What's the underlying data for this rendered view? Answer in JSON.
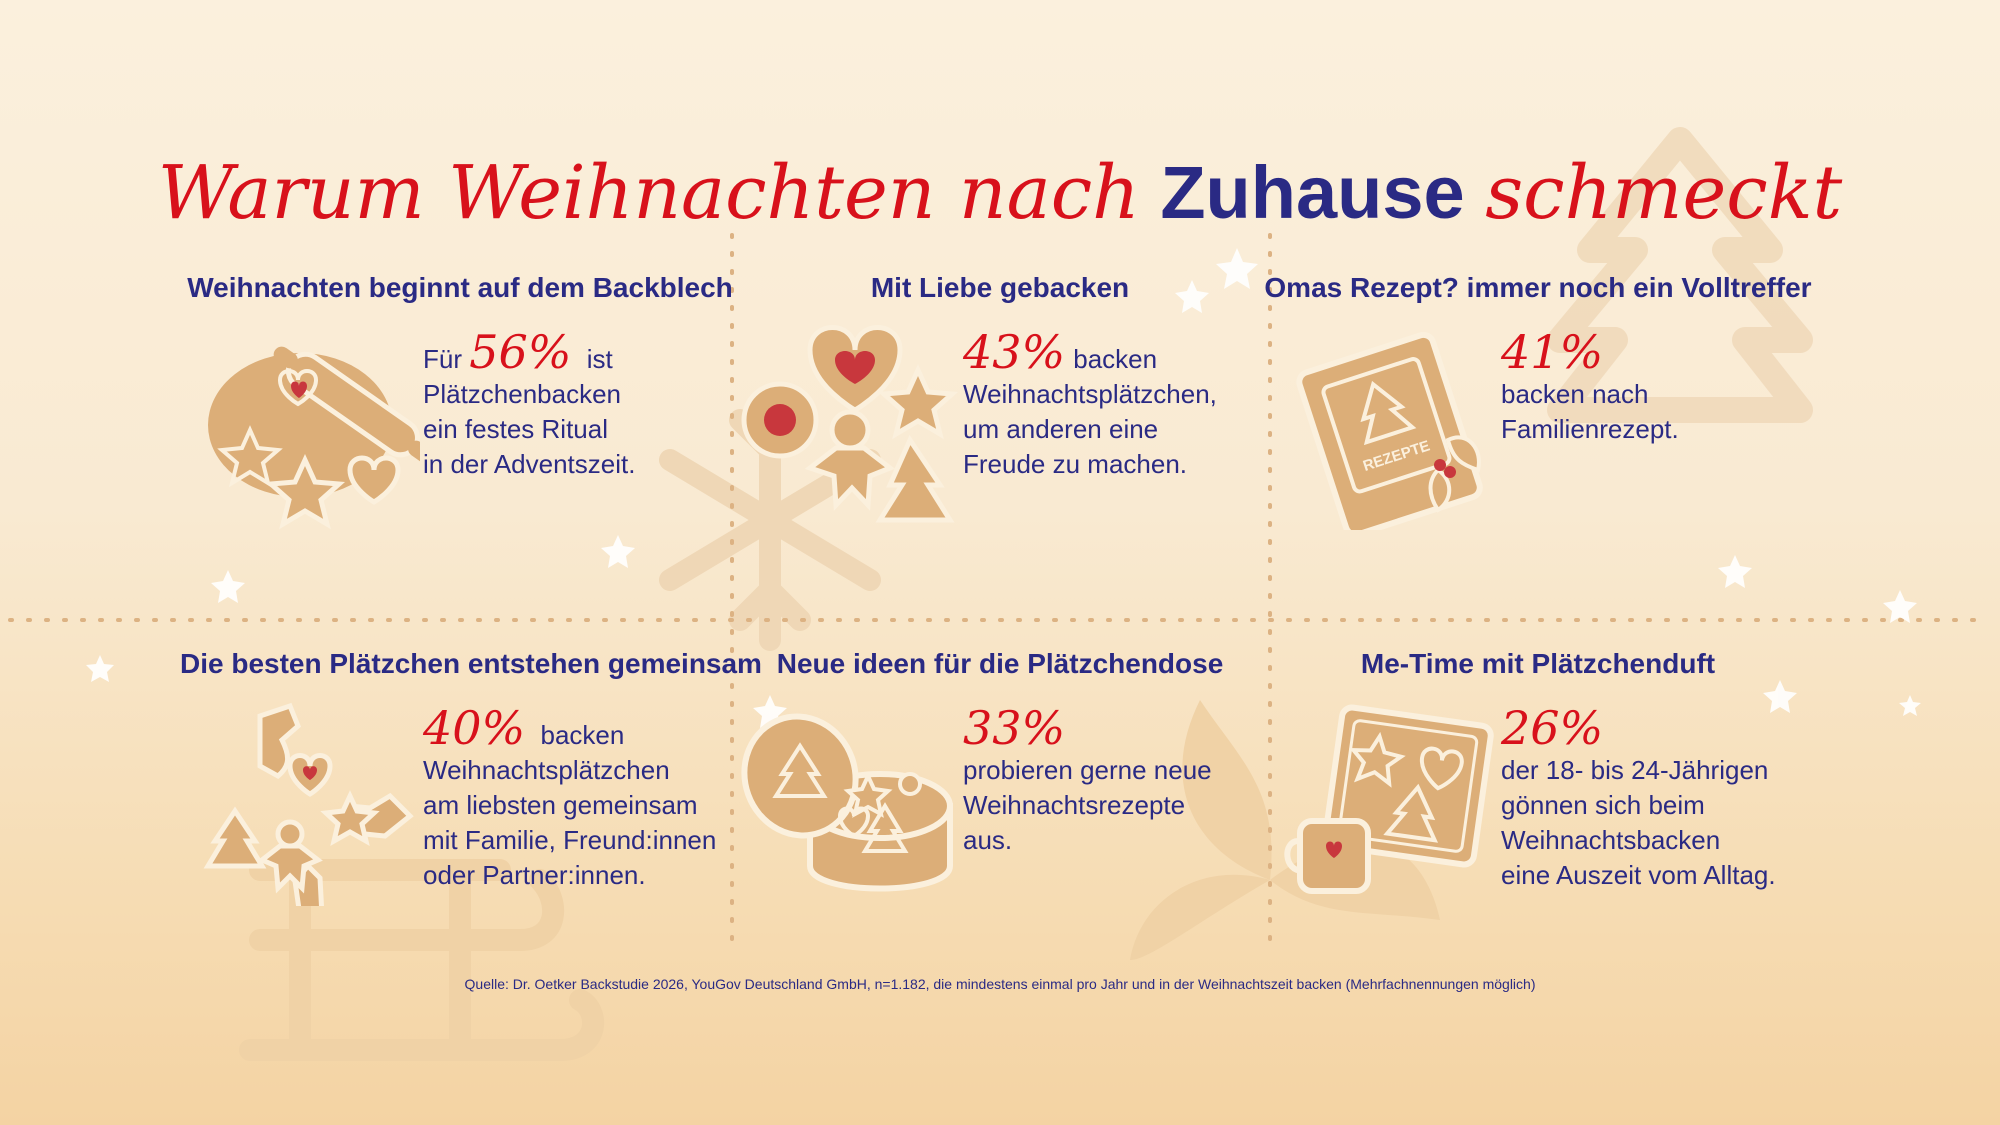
{
  "title": {
    "part1": "Warum Weihnachten nach",
    "part2": "Zuhause",
    "part3": "schmeckt"
  },
  "colors": {
    "accent_red": "#d8111b",
    "navy": "#2a2a84",
    "cookie": "#dcae78",
    "cookie_red": "#c8373d"
  },
  "panels": [
    {
      "heading": "Weihnachten beginnt auf dem Backblech",
      "icon": "rolling-pin-cookies-icon",
      "lead": "Für",
      "pct": "56%",
      "after": "ist",
      "lines": [
        "Plätzchenbacken",
        "ein festes Ritual",
        "in der Adventszeit."
      ]
    },
    {
      "heading": "Mit Liebe gebacken",
      "icon": "heart-star-gingerbread-cookies-icon",
      "lead": "",
      "pct": "43%",
      "after": "backen",
      "lines": [
        "Weihnachtsplätzchen,",
        "um anderen eine",
        "Freude zu machen."
      ]
    },
    {
      "heading": "Omas Rezept? immer noch ein Volltreffer",
      "icon": "recipe-book-icon",
      "lead": "",
      "pct": "41%",
      "after": "",
      "lines": [
        "backen nach",
        "Familienrezept."
      ]
    },
    {
      "heading": "Die besten Plätzchen entstehen gemeinsam",
      "icon": "sharing-hands-cookies-icon",
      "lead": "",
      "pct": "40%",
      "after": "backen",
      "lines": [
        "Weihnachtsplätzchen",
        "am liebsten gemeinsam",
        "mit Familie, Freund:innen",
        "oder Partner:innen."
      ]
    },
    {
      "heading": "Neue ideen für die Plätzchendose",
      "icon": "cookie-tin-icon",
      "lead": "",
      "pct": "33%",
      "after": "",
      "lines": [
        "probieren gerne neue",
        "Weihnachtsrezepte",
        "aus."
      ]
    },
    {
      "heading": "Me-Time mit Plätzchenduft",
      "icon": "baking-tray-mug-icon",
      "lead": "",
      "pct": "26%",
      "after": "",
      "lines": [
        "der 18- bis 24-Jährigen",
        "gönnen sich beim",
        "Weihnachtsbacken",
        "eine Auszeit vom Alltag."
      ]
    }
  ],
  "book_label": "REZEPTE",
  "source": "Quelle: Dr. Oetker Backstudie 2026, YouGov Deutschland GmbH, n=1.182, die mindestens einmal pro Jahr und in der Weihnachtszeit backen (Mehrfachnennungen möglich)"
}
